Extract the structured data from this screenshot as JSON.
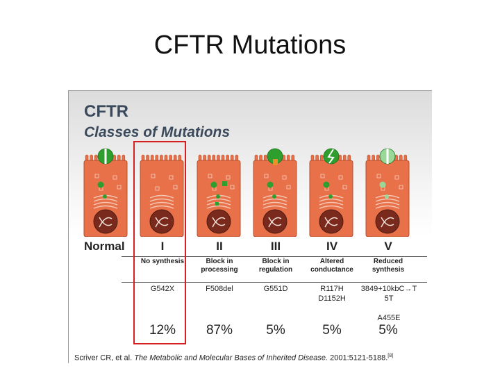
{
  "slide": {
    "title": "CFTR Mutations"
  },
  "figure": {
    "title": "CFTR",
    "subtitle": "Classes of Mutations",
    "colors": {
      "cell": "#e8714a",
      "cell_border": "#b5502e",
      "nucleus": "#7a2a1c",
      "channel": "#2e9e2e",
      "highlight": "#d42020"
    },
    "classes": [
      {
        "label": "Normal",
        "description": "",
        "mutations": "",
        "percent": ""
      },
      {
        "label": "I",
        "description": "No synthesis",
        "mutations": "G542X",
        "percent": "12%"
      },
      {
        "label": "II",
        "description": "Block in processing",
        "mutations": "F508del",
        "percent": "87%"
      },
      {
        "label": "III",
        "description": "Block in regulation",
        "mutations": "G551D",
        "percent": "5%"
      },
      {
        "label": "IV",
        "description": "Altered conductance",
        "mutations": "R117H\nD1152H",
        "percent": "5%"
      },
      {
        "label": "V",
        "description": "Reduced synthesis",
        "mutations": "3849+10kbC→T\n5T\n\nA455E",
        "percent": "5%"
      }
    ],
    "citation": {
      "authors": "Scriver CR, et al.",
      "work": "The Metabolic and Molecular Bases of Inherited Disease.",
      "details": "2001:5121-5188.",
      "ref": "[8]"
    }
  }
}
